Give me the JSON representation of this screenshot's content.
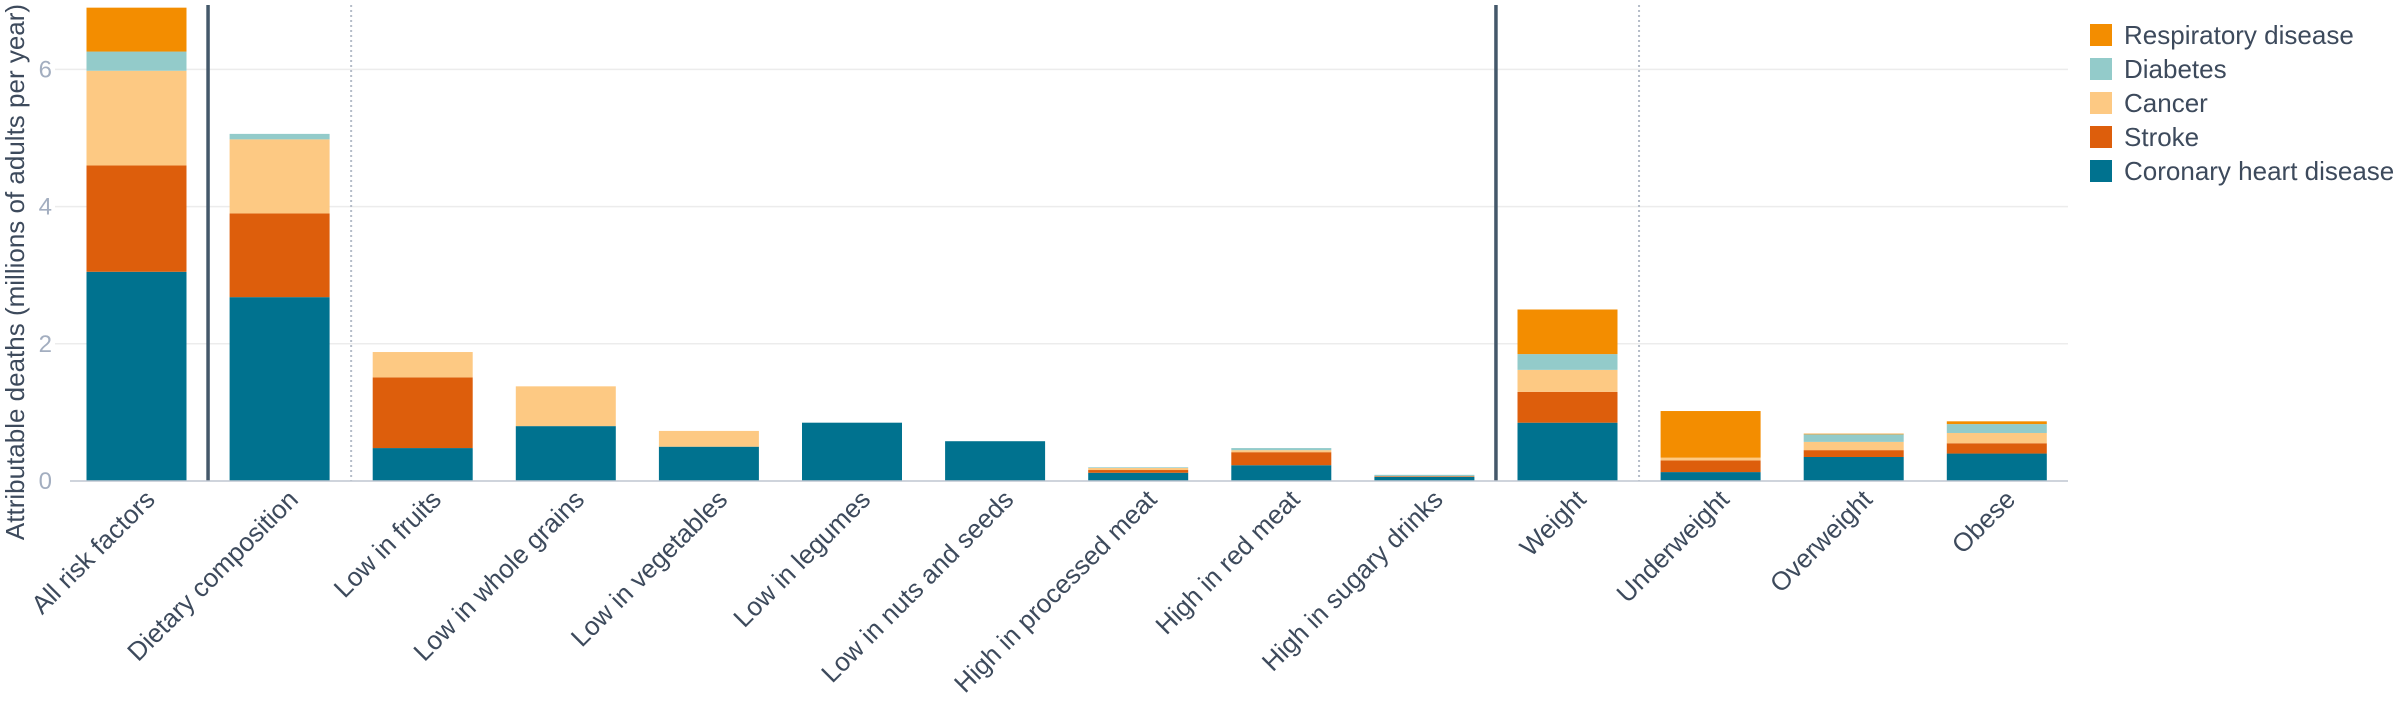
{
  "chart_data": {
    "type": "bar",
    "stacked": true,
    "ylabel": "Attributable deaths (millions of adults per year)",
    "ylim": [
      0,
      6.9
    ],
    "yticks": [
      0,
      2,
      4,
      6
    ],
    "grid": true,
    "legend_position": "right",
    "categories": [
      "All risk factors",
      "Dietary composition",
      "Low in fruits",
      "Low in whole grains",
      "Low in vegetables",
      "Low in legumes",
      "Low in nuts and seeds",
      "High in processed meat",
      "High in red meat",
      "High in sugary drinks",
      "Weight",
      "Underweight",
      "Overweight",
      "Obese"
    ],
    "series": [
      {
        "name": "Coronary heart disease",
        "color": "#00728f",
        "values": [
          3.05,
          2.68,
          0.48,
          0.8,
          0.5,
          0.85,
          0.58,
          0.12,
          0.23,
          0.06,
          0.85,
          0.13,
          0.35,
          0.4
        ]
      },
      {
        "name": "Stroke",
        "color": "#dd5e0c",
        "values": [
          1.55,
          1.22,
          1.03,
          0.0,
          0.0,
          0.0,
          0.0,
          0.04,
          0.19,
          0.01,
          0.45,
          0.17,
          0.1,
          0.15
        ]
      },
      {
        "name": "Cancer",
        "color": "#fdc983",
        "values": [
          1.38,
          1.08,
          0.37,
          0.58,
          0.23,
          0.0,
          0.0,
          0.03,
          0.03,
          0.0,
          0.32,
          0.04,
          0.12,
          0.15
        ]
      },
      {
        "name": "Diabetes",
        "color": "#93cbca",
        "values": [
          0.28,
          0.08,
          0.0,
          0.0,
          0.0,
          0.0,
          0.0,
          0.01,
          0.03,
          0.02,
          0.23,
          0.0,
          0.11,
          0.13
        ]
      },
      {
        "name": "Respiratory disease",
        "color": "#f38d00",
        "values": [
          0.64,
          0.0,
          0.0,
          0.0,
          0.0,
          0.0,
          0.0,
          0.0,
          0.0,
          0.0,
          0.65,
          0.68,
          0.01,
          0.04
        ]
      }
    ],
    "dividers": [
      {
        "after_category": 0,
        "style": "solid"
      },
      {
        "after_category": 1,
        "style": "dotted"
      },
      {
        "after_category": 9,
        "style": "solid"
      },
      {
        "after_category": 10,
        "style": "dotted"
      }
    ],
    "legend_order": [
      "Respiratory disease",
      "Diabetes",
      "Cancer",
      "Stroke",
      "Coronary heart disease"
    ]
  }
}
